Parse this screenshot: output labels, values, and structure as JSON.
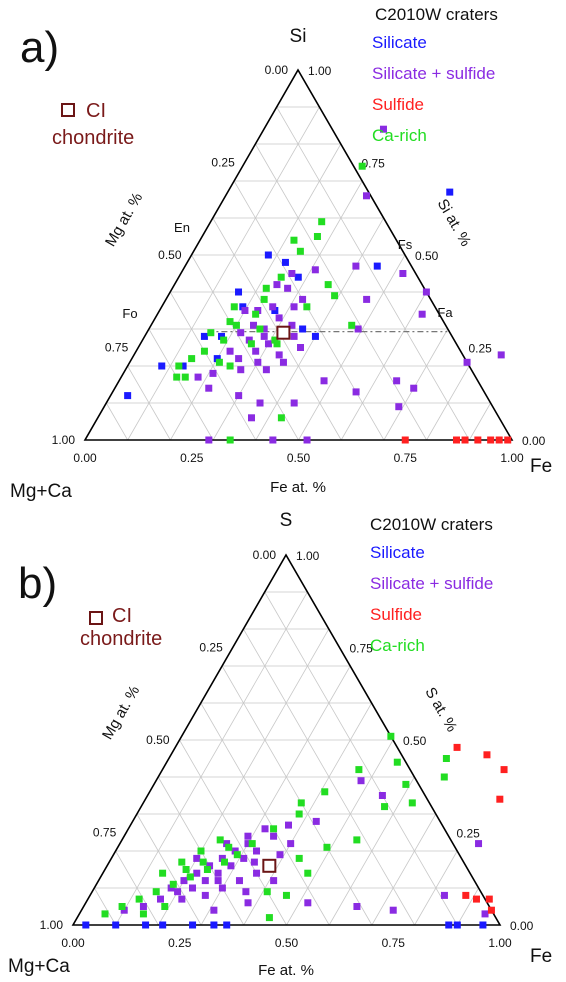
{
  "colors": {
    "Silicate": "#1a1aff",
    "Silicate + sulfide": "#8a2be2",
    "Sulfide": "#ff2020",
    "Ca-rich": "#22dd22",
    "ci": "#6b1515"
  },
  "chart_data": [
    {
      "type": "scatter",
      "subtype": "ternary",
      "panel_label": "a)",
      "vertices": {
        "left": "Mg+Ca",
        "right": "Fe",
        "top": "Si"
      },
      "axis_labels": {
        "left": "Mg at. %",
        "right": "Si at. %",
        "bottom": "Fe at. %"
      },
      "ticks": [
        "0.00",
        "0.25",
        "0.50",
        "0.75",
        "1.00"
      ],
      "mineral_labels": [
        "En",
        "Fs",
        "Fo",
        "Fa"
      ],
      "legend_title": "C2010W craters",
      "legend": [
        "Silicate",
        "Silicate + sulfide",
        "Sulfide",
        "Ca-rich"
      ],
      "ci_label": [
        "CI",
        "chondrite"
      ],
      "ci_point": {
        "fe": 0.32,
        "si": 0.29
      },
      "reference_line_si": 0.293,
      "series": [
        {
          "name": "Silicate",
          "points": [
            [
              0.04,
              0.12
            ],
            [
              0.08,
              0.2
            ],
            [
              0.13,
              0.2
            ],
            [
              0.2,
              0.22
            ],
            [
              0.18,
              0.28
            ],
            [
              0.16,
              0.4
            ],
            [
              0.23,
              0.48
            ],
            [
              0.18,
              0.5
            ],
            [
              0.28,
              0.44
            ],
            [
              0.36,
              0.3
            ],
            [
              0.19,
              0.36
            ],
            [
              0.52,
              0.67
            ],
            [
              0.45,
              0.47
            ],
            [
              0.4,
              0.28
            ],
            [
              0.27,
              0.35
            ],
            [
              0.14,
              0.28
            ]
          ]
        },
        {
          "name": "Silicate + sulfide",
          "points": [
            [
              0.28,
              0.84
            ],
            [
              0.33,
              0.66
            ],
            [
              0.31,
              0.46
            ],
            [
              0.27,
              0.41
            ],
            [
              0.26,
              0.36
            ],
            [
              0.2,
              0.35
            ],
            [
              0.24,
              0.31
            ],
            [
              0.22,
              0.29
            ],
            [
              0.25,
              0.27
            ],
            [
              0.27,
              0.3
            ],
            [
              0.3,
              0.26
            ],
            [
              0.28,
              0.24
            ],
            [
              0.22,
              0.24
            ],
            [
              0.31,
              0.36
            ],
            [
              0.33,
              0.31
            ],
            [
              0.35,
              0.28
            ],
            [
              0.38,
              0.25
            ],
            [
              0.36,
              0.21
            ],
            [
              0.33,
              0.19
            ],
            [
              0.3,
              0.21
            ],
            [
              0.27,
              0.19
            ],
            [
              0.25,
              0.22
            ],
            [
              0.21,
              0.18
            ],
            [
              0.18,
              0.17
            ],
            [
              0.22,
              0.14
            ],
            [
              0.3,
              0.12
            ],
            [
              0.36,
              0.1
            ],
            [
              0.44,
              0.1
            ],
            [
              0.48,
              0.16
            ],
            [
              0.49,
              0.3
            ],
            [
              0.47,
              0.38
            ],
            [
              0.52,
              0.45
            ],
            [
              0.4,
              0.47
            ],
            [
              0.6,
              0.4
            ],
            [
              0.62,
              0.34
            ],
            [
              0.65,
              0.16
            ],
            [
              0.7,
              0.14
            ],
            [
              0.69,
              0.09
            ],
            [
              0.79,
              0.21
            ],
            [
              0.86,
              0.23
            ],
            [
              0.57,
              0.13
            ],
            [
              0.36,
              0.06
            ],
            [
              0.29,
              0.0
            ],
            [
              0.44,
              0.0
            ],
            [
              0.52,
              0.0
            ],
            [
              0.24,
              0.42
            ],
            [
              0.32,
              0.38
            ],
            [
              0.29,
              0.33
            ],
            [
              0.26,
              0.45
            ],
            [
              0.34,
              0.23
            ],
            [
              0.23,
              0.35
            ],
            [
              0.28,
              0.28
            ]
          ]
        },
        {
          "name": "Sulfide",
          "points": [
            [
              0.75,
              0.0
            ],
            [
              0.87,
              0.0
            ],
            [
              0.89,
              0.0
            ],
            [
              0.92,
              0.0
            ],
            [
              0.95,
              0.0
            ],
            [
              0.97,
              0.0
            ],
            [
              0.99,
              0.0
            ]
          ]
        },
        {
          "name": "Ca-rich",
          "points": [
            [
              0.28,
              0.74
            ],
            [
              0.26,
              0.59
            ],
            [
              0.25,
              0.51
            ],
            [
              0.27,
              0.55
            ],
            [
              0.22,
              0.54
            ],
            [
              0.24,
              0.44
            ],
            [
              0.22,
              0.41
            ],
            [
              0.23,
              0.38
            ],
            [
              0.18,
              0.32
            ],
            [
              0.15,
              0.29
            ],
            [
              0.16,
              0.24
            ],
            [
              0.14,
              0.22
            ],
            [
              0.12,
              0.2
            ],
            [
              0.13,
              0.17
            ],
            [
              0.15,
              0.17
            ],
            [
              0.21,
              0.21
            ],
            [
              0.24,
              0.2
            ],
            [
              0.26,
              0.26
            ],
            [
              0.31,
              0.27
            ],
            [
              0.32,
              0.26
            ],
            [
              0.34,
              0.36
            ],
            [
              0.36,
              0.42
            ],
            [
              0.39,
              0.39
            ],
            [
              0.47,
              0.31
            ],
            [
              0.43,
              0.06
            ],
            [
              0.34,
              0.0
            ],
            [
              0.23,
              0.34
            ],
            [
              0.19,
              0.27
            ],
            [
              0.17,
              0.36
            ],
            [
              0.26,
              0.3
            ],
            [
              0.2,
              0.31
            ]
          ]
        }
      ]
    },
    {
      "type": "scatter",
      "subtype": "ternary",
      "panel_label": "b)",
      "vertices": {
        "left": "Mg+Ca",
        "right": "Fe",
        "top": "S"
      },
      "axis_labels": {
        "left": "Mg at. %",
        "right": "S at. %",
        "bottom": "Fe at. %"
      },
      "ticks": [
        "0.00",
        "0.25",
        "0.50",
        "0.75",
        "1.00"
      ],
      "legend_title": "C2010W craters",
      "legend": [
        "Silicate",
        "Silicate + sulfide",
        "Sulfide",
        "Ca-rich"
      ],
      "ci_label": [
        "CI",
        "chondrite"
      ],
      "ci_point": {
        "fe": 0.38,
        "s": 0.16
      },
      "series": [
        {
          "name": "Silicate",
          "points": [
            [
              0.03,
              0.0
            ],
            [
              0.1,
              0.0
            ],
            [
              0.17,
              0.0
            ],
            [
              0.21,
              0.0
            ],
            [
              0.28,
              0.0
            ],
            [
              0.33,
              0.0
            ],
            [
              0.36,
              0.0
            ],
            [
              0.88,
              0.0
            ],
            [
              0.9,
              0.0
            ],
            [
              0.96,
              0.0
            ]
          ]
        },
        {
          "name": "Silicate + sulfide",
          "points": [
            [
              0.1,
              0.04
            ],
            [
              0.14,
              0.05
            ],
            [
              0.17,
              0.07
            ],
            [
              0.2,
              0.09
            ],
            [
              0.23,
              0.1
            ],
            [
              0.25,
              0.12
            ],
            [
              0.27,
              0.14
            ],
            [
              0.29,
              0.16
            ],
            [
              0.31,
              0.18
            ],
            [
              0.33,
              0.2
            ],
            [
              0.3,
              0.22
            ],
            [
              0.28,
              0.2
            ],
            [
              0.26,
              0.18
            ],
            [
              0.24,
              0.16
            ],
            [
              0.22,
              0.14
            ],
            [
              0.2,
              0.12
            ],
            [
              0.18,
              0.1
            ],
            [
              0.27,
              0.08
            ],
            [
              0.3,
              0.1
            ],
            [
              0.33,
              0.12
            ],
            [
              0.36,
              0.14
            ],
            [
              0.35,
              0.24
            ],
            [
              0.37,
              0.27
            ],
            [
              0.32,
              0.26
            ],
            [
              0.29,
              0.24
            ],
            [
              0.25,
              0.22
            ],
            [
              0.39,
              0.19
            ],
            [
              0.41,
              0.12
            ],
            [
              0.38,
              0.06
            ],
            [
              0.43,
              0.28
            ],
            [
              0.48,
              0.39
            ],
            [
              0.55,
              0.35
            ],
            [
              0.52,
              0.06
            ],
            [
              0.64,
              0.05
            ],
            [
              0.73,
              0.04
            ],
            [
              0.83,
              0.08
            ],
            [
              0.84,
              0.22
            ],
            [
              0.95,
              0.03
            ],
            [
              0.22,
              0.07
            ],
            [
              0.31,
              0.04
            ],
            [
              0.28,
              0.12
            ],
            [
              0.34,
              0.17
            ],
            [
              0.36,
              0.09
            ],
            [
              0.4,
              0.22
            ],
            [
              0.2,
              0.18
            ]
          ]
        },
        {
          "name": "Sulfide",
          "points": [
            [
              0.66,
              0.48
            ],
            [
              0.74,
              0.46
            ],
            [
              0.8,
              0.42
            ],
            [
              0.83,
              0.34
            ],
            [
              0.88,
              0.08
            ],
            [
              0.91,
              0.07
            ],
            [
              0.94,
              0.07
            ],
            [
              0.96,
              0.04
            ]
          ]
        },
        {
          "name": "Ca-rich",
          "points": [
            [
              0.06,
              0.03
            ],
            [
              0.09,
              0.05
            ],
            [
              0.12,
              0.07
            ],
            [
              0.15,
              0.09
            ],
            [
              0.18,
              0.11
            ],
            [
              0.21,
              0.13
            ],
            [
              0.24,
              0.15
            ],
            [
              0.27,
              0.17
            ],
            [
              0.29,
              0.19
            ],
            [
              0.26,
              0.21
            ],
            [
              0.23,
              0.23
            ],
            [
              0.2,
              0.2
            ],
            [
              0.17,
              0.17
            ],
            [
              0.14,
              0.14
            ],
            [
              0.19,
              0.15
            ],
            [
              0.22,
              0.17
            ],
            [
              0.31,
              0.22
            ],
            [
              0.34,
              0.26
            ],
            [
              0.38,
              0.3
            ],
            [
              0.37,
              0.33
            ],
            [
              0.41,
              0.36
            ],
            [
              0.46,
              0.42
            ],
            [
              0.49,
              0.51
            ],
            [
              0.54,
              0.44
            ],
            [
              0.59,
              0.38
            ],
            [
              0.63,
              0.33
            ],
            [
              0.65,
              0.45
            ],
            [
              0.67,
              0.4
            ],
            [
              0.55,
              0.23
            ],
            [
              0.49,
              0.21
            ],
            [
              0.44,
              0.18
            ],
            [
              0.41,
              0.09
            ],
            [
              0.46,
              0.08
            ],
            [
              0.15,
              0.03
            ],
            [
              0.19,
              0.05
            ],
            [
              0.45,
              0.02
            ],
            [
              0.48,
              0.14
            ],
            [
              0.57,
              0.32
            ]
          ]
        }
      ]
    }
  ]
}
